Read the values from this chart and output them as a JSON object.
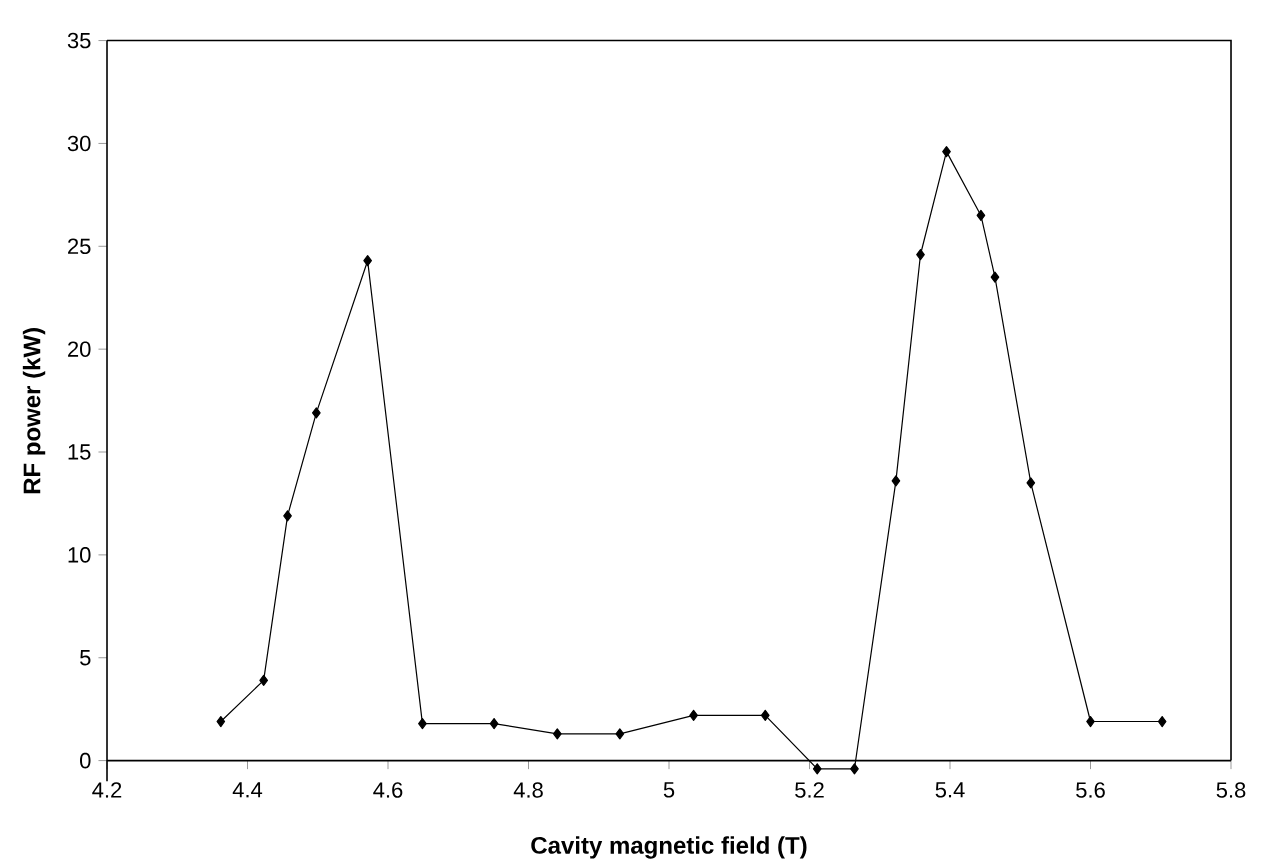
{
  "chart_data": {
    "type": "line",
    "xlabel": "Cavity magnetic field (T)",
    "ylabel": "RF power (kW)",
    "x": [
      4.362,
      4.423,
      4.457,
      4.498,
      4.571,
      4.649,
      4.751,
      4.841,
      4.93,
      5.035,
      5.137,
      5.211,
      5.264,
      5.323,
      5.358,
      5.395,
      5.444,
      5.464,
      5.515,
      5.6,
      5.702
    ],
    "values": [
      1.9,
      3.9,
      11.9,
      16.9,
      24.3,
      1.8,
      1.8,
      1.3,
      1.3,
      2.2,
      2.2,
      -0.4,
      -0.4,
      13.6,
      24.6,
      29.6,
      26.5,
      23.5,
      13.5,
      1.9,
      1.9
    ],
    "color": "#000000",
    "marker": "diamond",
    "line_style": "solid",
    "xlim": [
      4.2,
      5.8
    ],
    "ylim": [
      -1,
      35
    ],
    "xticks": [
      4.2,
      4.4,
      4.6,
      4.8,
      5,
      5.2,
      5.4,
      5.6,
      5.8
    ],
    "yticks": [
      0,
      5,
      10,
      15,
      20,
      25,
      30,
      35
    ]
  }
}
